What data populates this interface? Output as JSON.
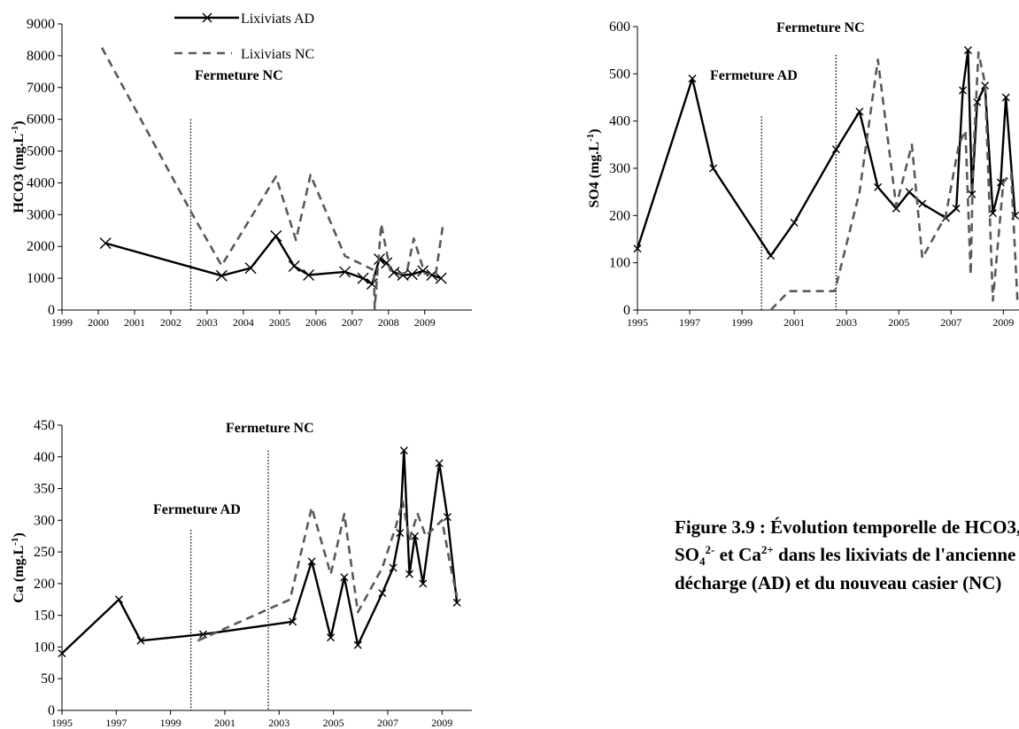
{
  "caption": {
    "line1": "Figure 3.9 : Évolution temporelle de HCO3,",
    "line2_so4": "SO",
    "line2_sub4": "4",
    "line2_sup2": "2-",
    "line2_mid": " et Ca",
    "line2_sup2p": "2+",
    "line2_end": " dans les lixiviats de l'ancienne",
    "line3": "décharge (AD) et du nouveau casier (NC)"
  },
  "legend": {
    "ad": "Lixiviats AD",
    "nc": "Lixiviats NC"
  },
  "chart_data": [
    {
      "id": "hco3",
      "type": "line",
      "ylabel_main": "HCO3 (mg.L",
      "ylabel_sup": "-1",
      "ylabel_end": ")",
      "ylim": [
        0,
        9000
      ],
      "yticks": [
        0,
        1000,
        2000,
        3000,
        4000,
        5000,
        6000,
        7000,
        8000,
        9000
      ],
      "xlim": [
        1999,
        2010.3
      ],
      "xticks": [
        1999,
        2000,
        2001,
        2002,
        2003,
        2004,
        2005,
        2006,
        2007,
        2008,
        2009
      ],
      "annotations": [
        {
          "text": "Fermeture NC",
          "line_x": 2002.55,
          "line_top": 6000
        }
      ],
      "series": [
        {
          "name": "Lixiviats AD",
          "style": "solid-x",
          "x": [
            2000.2,
            2003.4,
            2004.2,
            2004.9,
            2005.4,
            2005.8,
            2006.8,
            2007.3,
            2007.55,
            2007.75,
            2007.95,
            2008.15,
            2008.4,
            2008.65,
            2008.95,
            2009.2,
            2009.45
          ],
          "y": [
            2100,
            1080,
            1320,
            2330,
            1380,
            1100,
            1200,
            1000,
            820,
            1600,
            1480,
            1180,
            1100,
            1120,
            1230,
            1100,
            1000
          ]
        },
        {
          "name": "Lixiviats NC",
          "style": "dashed",
          "x": [
            2000.1,
            2002.55,
            2003.4,
            2004.9,
            2005.45,
            2005.85,
            2006.8,
            2007.6,
            2007.62,
            2007.8,
            2008.05,
            2008.3,
            2008.5,
            2008.7,
            2009.0,
            2009.3,
            2009.5
          ],
          "y": [
            8250,
            3100,
            1400,
            4200,
            2200,
            4250,
            1700,
            1250,
            50,
            2700,
            1250,
            1150,
            1150,
            2250,
            1150,
            1100,
            2650
          ]
        }
      ]
    },
    {
      "id": "so4",
      "type": "line",
      "ylabel_main": "SO4 (mg.L",
      "ylabel_sup": "-1",
      "ylabel_end": ")",
      "ylim": [
        0,
        600
      ],
      "yticks": [
        0,
        100,
        200,
        300,
        400,
        500,
        600
      ],
      "xlim": [
        1995,
        2009.6
      ],
      "xticks": [
        1995,
        1997,
        1999,
        2001,
        2003,
        2005,
        2007,
        2009
      ],
      "annotations": [
        {
          "text": "Fermeture AD",
          "line_x": 1999.75,
          "line_top": 410
        },
        {
          "text": "Fermeture NC",
          "line_x": 2002.6,
          "line_top": 540
        }
      ],
      "series": [
        {
          "name": "Lixiviats AD",
          "style": "solid-x",
          "x": [
            1995,
            1997.1,
            1997.9,
            2000.1,
            2001,
            2002.6,
            2003.5,
            2004.2,
            2004.9,
            2005.4,
            2005.9,
            2006.8,
            2007.2,
            2007.45,
            2007.65,
            2007.8,
            2008.0,
            2008.3,
            2008.6,
            2008.9,
            2009.1,
            2009.45
          ],
          "y": [
            130,
            490,
            300,
            115,
            185,
            340,
            420,
            260,
            215,
            250,
            225,
            195,
            215,
            465,
            550,
            245,
            440,
            475,
            205,
            270,
            450,
            200
          ]
        },
        {
          "name": "Lixiviats NC",
          "style": "dashed",
          "x": [
            2000.1,
            2000.8,
            2002.55,
            2003.5,
            2004.2,
            2004.9,
            2005.5,
            2005.9,
            2006.8,
            2007.3,
            2007.55,
            2007.75,
            2007.85,
            2008.05,
            2008.3,
            2008.6,
            2009.0,
            2009.3,
            2009.55
          ],
          "y": [
            0,
            40,
            40,
            250,
            530,
            220,
            350,
            110,
            200,
            350,
            380,
            75,
            320,
            545,
            480,
            20,
            270,
            290,
            10
          ]
        }
      ]
    },
    {
      "id": "ca",
      "type": "line",
      "ylabel_main": "Ca (mg.L",
      "ylabel_sup": "-1",
      "ylabel_end": ")",
      "ylim": [
        0,
        450
      ],
      "yticks": [
        0,
        50,
        100,
        150,
        200,
        250,
        300,
        350,
        400,
        450
      ],
      "xlim": [
        1995,
        2010.1
      ],
      "xticks": [
        1995,
        1997,
        1999,
        2001,
        2003,
        2005,
        2007,
        2009
      ],
      "annotations": [
        {
          "text": "Fermeture AD",
          "line_x": 1999.75,
          "line_top": 285
        },
        {
          "text": "Fermeture NC",
          "line_x": 2002.6,
          "line_top": 410
        }
      ],
      "series": [
        {
          "name": "Lixiviats AD",
          "style": "solid-x",
          "x": [
            1995,
            1997.1,
            1997.9,
            2000.2,
            2003.5,
            2004.2,
            2004.9,
            2005.4,
            2005.9,
            2006.8,
            2007.2,
            2007.45,
            2007.6,
            2007.8,
            2008.0,
            2008.3,
            2008.9,
            2009.2,
            2009.55
          ],
          "y": [
            90,
            175,
            110,
            120,
            140,
            235,
            115,
            210,
            103,
            185,
            225,
            280,
            410,
            215,
            275,
            200,
            390,
            305,
            170
          ]
        },
        {
          "name": "Lixiviats NC",
          "style": "dashed",
          "x": [
            2000.0,
            2003.4,
            2004.2,
            2004.9,
            2005.4,
            2005.9,
            2006.8,
            2007.3,
            2007.55,
            2007.8,
            2008.1,
            2008.4,
            2009.0,
            2009.3,
            2009.55
          ],
          "y": [
            110,
            175,
            320,
            215,
            310,
            155,
            225,
            290,
            330,
            270,
            310,
            275,
            300,
            230,
            180
          ]
        }
      ]
    }
  ]
}
